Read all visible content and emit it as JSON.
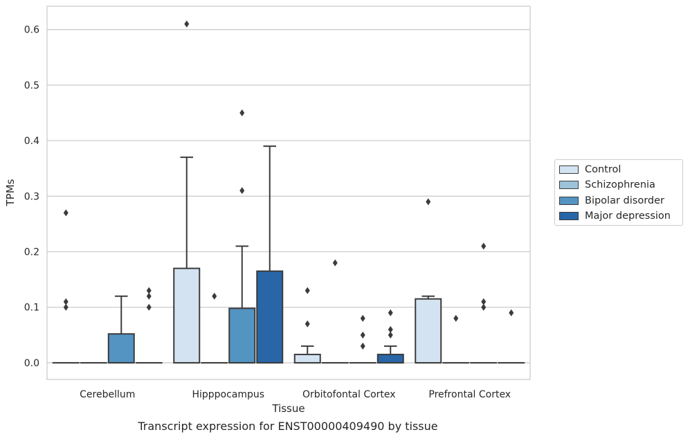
{
  "caption": "Transcript expression for ENST00000409490 by tissue",
  "chart_data": {
    "type": "box",
    "xlabel": "Tissue",
    "ylabel": "TPMs",
    "ylim": [
      -0.03,
      0.642
    ],
    "yticks": [
      0.0,
      0.1,
      0.2,
      0.3,
      0.4,
      0.5,
      0.6
    ],
    "ytick_labels": [
      "0.0",
      "0.1",
      "0.2",
      "0.3",
      "0.4",
      "0.5",
      "0.6"
    ],
    "grid": true,
    "legend_position": "right",
    "categories": [
      "Cerebellum",
      "Hipppocampus",
      "Orbitofontal Cortex",
      "Prefrontal Cortex"
    ],
    "series": [
      {
        "name": "Control",
        "color": "#d4e3f1",
        "boxes": [
          {
            "q1": 0.0,
            "median": 0.0,
            "q3": 0.0,
            "whislo": 0.0,
            "whishi": 0.0,
            "fliers": [
              0.27,
              0.11,
              0.1
            ]
          },
          {
            "q1": 0.0,
            "median": 0.0,
            "q3": 0.17,
            "whislo": 0.0,
            "whishi": 0.37,
            "fliers": [
              0.61
            ]
          },
          {
            "q1": 0.0,
            "median": 0.0,
            "q3": 0.015,
            "whislo": 0.0,
            "whishi": 0.03,
            "fliers": [
              0.13,
              0.07
            ]
          },
          {
            "q1": 0.0,
            "median": 0.0,
            "q3": 0.115,
            "whislo": 0.0,
            "whishi": 0.12,
            "fliers": [
              0.29
            ]
          }
        ]
      },
      {
        "name": "Schizophrenia",
        "color": "#9cc3da",
        "boxes": [
          {
            "q1": 0.0,
            "median": 0.0,
            "q3": 0.0,
            "whislo": 0.0,
            "whishi": 0.0,
            "fliers": []
          },
          {
            "q1": 0.0,
            "median": 0.0,
            "q3": 0.0,
            "whislo": 0.0,
            "whishi": 0.0,
            "fliers": [
              0.12
            ]
          },
          {
            "q1": 0.0,
            "median": 0.0,
            "q3": 0.0,
            "whislo": 0.0,
            "whishi": 0.0,
            "fliers": [
              0.18
            ]
          },
          {
            "q1": 0.0,
            "median": 0.0,
            "q3": 0.0,
            "whislo": 0.0,
            "whishi": 0.0,
            "fliers": [
              0.08
            ]
          }
        ]
      },
      {
        "name": "Bipolar disorder",
        "color": "#5394c3",
        "boxes": [
          {
            "q1": 0.0,
            "median": 0.0,
            "q3": 0.052,
            "whislo": 0.0,
            "whishi": 0.12,
            "fliers": []
          },
          {
            "q1": 0.0,
            "median": 0.0,
            "q3": 0.098,
            "whislo": 0.0,
            "whishi": 0.21,
            "fliers": [
              0.45,
              0.31
            ]
          },
          {
            "q1": 0.0,
            "median": 0.0,
            "q3": 0.0,
            "whislo": 0.0,
            "whishi": 0.0,
            "fliers": [
              0.08,
              0.05,
              0.03
            ]
          },
          {
            "q1": 0.0,
            "median": 0.0,
            "q3": 0.0,
            "whislo": 0.0,
            "whishi": 0.0,
            "fliers": [
              0.21,
              0.11,
              0.1
            ]
          }
        ]
      },
      {
        "name": "Major depression",
        "color": "#2866a8",
        "boxes": [
          {
            "q1": 0.0,
            "median": 0.0,
            "q3": 0.0,
            "whislo": 0.0,
            "whishi": 0.0,
            "fliers": [
              0.13,
              0.12,
              0.1
            ]
          },
          {
            "q1": 0.0,
            "median": 0.0,
            "q3": 0.165,
            "whislo": 0.0,
            "whishi": 0.39,
            "fliers": []
          },
          {
            "q1": 0.0,
            "median": 0.0,
            "q3": 0.015,
            "whislo": 0.0,
            "whishi": 0.03,
            "fliers": [
              0.09,
              0.06,
              0.05
            ]
          },
          {
            "q1": 0.0,
            "median": 0.0,
            "q3": 0.0,
            "whislo": 0.0,
            "whishi": 0.0,
            "fliers": [
              0.09
            ]
          }
        ]
      }
    ]
  }
}
